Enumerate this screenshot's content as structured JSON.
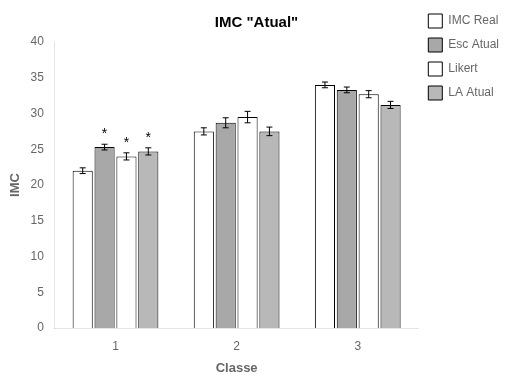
{
  "chart_data": {
    "type": "bar",
    "title": "IMC \"Atual\"",
    "x_label": "Classe",
    "y_label": "IMC",
    "categories": [
      "1",
      "2",
      "3"
    ],
    "series": [
      {
        "name": "IMC Real",
        "color": "white",
        "values": [
          22.0,
          27.5,
          34.0
        ],
        "errors": [
          0.4,
          0.5,
          0.4
        ]
      },
      {
        "name": "Esc Atual",
        "color": "#a8a8a8",
        "values": [
          25.3,
          28.7,
          33.3
        ],
        "errors": [
          0.4,
          0.7,
          0.4
        ]
      },
      {
        "name": "Likert",
        "color": "white",
        "values": [
          24.0,
          29.5,
          32.7
        ],
        "errors": [
          0.5,
          0.8,
          0.5
        ]
      },
      {
        "name": "LA Atual",
        "color": "#b8b8b8",
        "values": [
          24.7,
          27.5,
          31.2
        ],
        "errors": [
          0.5,
          0.6,
          0.5
        ]
      }
    ],
    "annotations": [
      {
        "text": "*",
        "category": "1",
        "series": "Esc Atual"
      },
      {
        "text": "*",
        "category": "1",
        "series": "Likert"
      },
      {
        "text": "*",
        "category": "1",
        "series": "LA Atual"
      }
    ],
    "ylim": [
      0,
      40
    ],
    "yticks": [
      0,
      5,
      10,
      15,
      20,
      25,
      30,
      35,
      40
    ],
    "grid": false,
    "legend": "right"
  }
}
